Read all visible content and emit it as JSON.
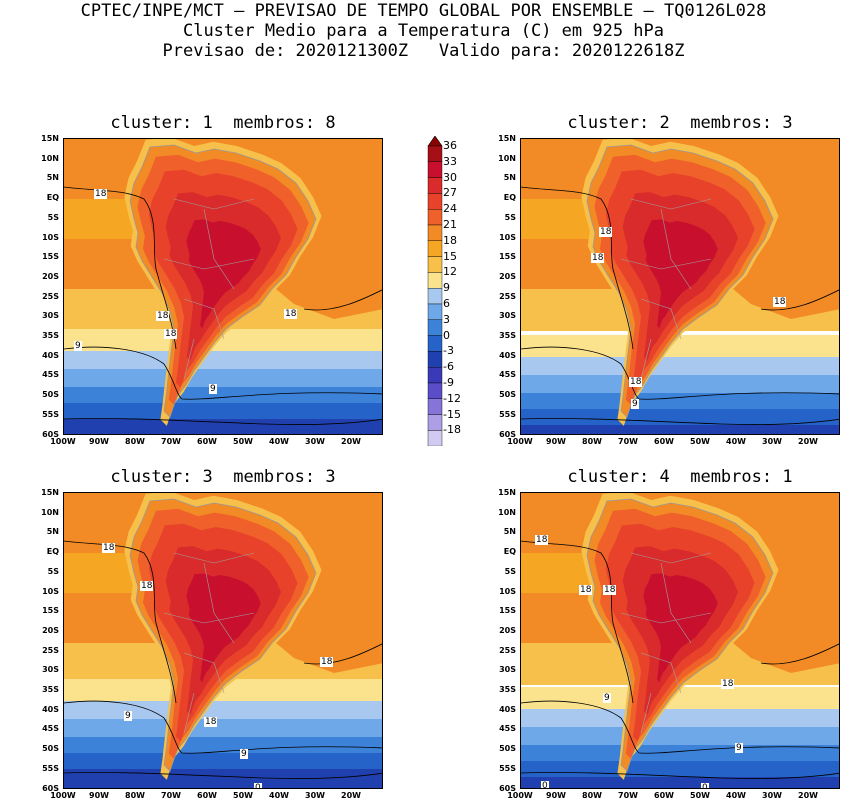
{
  "header": {
    "line1": "CPTEC/INPE/MCT – PREVISAO DE TEMPO GLOBAL POR ENSEMBLE – TQ0126L028",
    "line2": "Cluster Medio para a Temperatura (C) em 925 hPa",
    "line3": "Previsao de: 2020121300Z   Valido para: 2020122618Z"
  },
  "panels": [
    {
      "title": "cluster: 1  membros: 8",
      "labels": [
        "18",
        "18",
        "18",
        "18",
        "9",
        "9"
      ]
    },
    {
      "title": "cluster: 2  membros: 3",
      "labels": [
        "18",
        "18",
        "18",
        "18",
        "9"
      ]
    },
    {
      "title": "cluster: 3  membros: 3",
      "labels": [
        "18",
        "18",
        "18",
        "18",
        "9",
        "9",
        "0"
      ]
    },
    {
      "title": "cluster: 4  membros: 1",
      "labels": [
        "18",
        "18",
        "18",
        "18",
        "9",
        "9",
        "0",
        "0"
      ]
    }
  ],
  "axes": {
    "lat_ticks": [
      "15N",
      "10N",
      "5N",
      "EQ",
      "5S",
      "10S",
      "15S",
      "20S",
      "25S",
      "30S",
      "35S",
      "40S",
      "45S",
      "50S",
      "55S",
      "60S"
    ],
    "lon_ticks": [
      "100W",
      "90W",
      "80W",
      "70W",
      "60W",
      "50W",
      "40W",
      "30W",
      "20W"
    ]
  },
  "colorbar": {
    "labels": [
      "36",
      "33",
      "30",
      "27",
      "24",
      "21",
      "18",
      "15",
      "12",
      "9",
      "6",
      "3",
      "0",
      "-3",
      "-6",
      "-9",
      "-12",
      "-15",
      "-18"
    ],
    "colors": [
      "#a50f15",
      "#c8102e",
      "#d92b2b",
      "#e8432a",
      "#f0602a",
      "#f28a25",
      "#f5a623",
      "#f7c04a",
      "#fbe28c",
      "#a8c8f0",
      "#6fa8e8",
      "#3c82d8",
      "#2563c8",
      "#2040b0",
      "#3a3ab8",
      "#5b4cc8",
      "#8674d8",
      "#ad9ee6",
      "#d3caf2"
    ],
    "top_color": "#8b0000",
    "bottom_color": "#e8e0fa"
  }
}
